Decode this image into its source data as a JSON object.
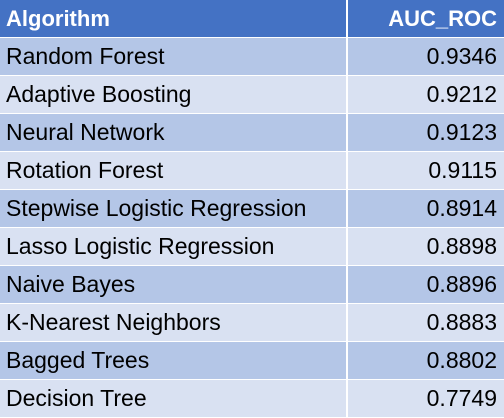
{
  "chart_data": {
    "type": "table",
    "columns": [
      "Algorithm",
      "AUC_ROC"
    ],
    "rows": [
      [
        "Random Forest",
        "0.9346"
      ],
      [
        "Adaptive Boosting",
        "0.9212"
      ],
      [
        "Neural Network",
        "0.9123"
      ],
      [
        "Rotation Forest",
        "0.9115"
      ],
      [
        "Stepwise Logistic Regression",
        "0.8914"
      ],
      [
        "Lasso Logistic Regression",
        "0.8898"
      ],
      [
        "Naive Bayes",
        "0.8896"
      ],
      [
        "K-Nearest Neighbors",
        "0.8883"
      ],
      [
        "Bagged Trees",
        "0.8802"
      ],
      [
        "Decision Tree",
        "0.7749"
      ]
    ]
  },
  "colors": {
    "header_bg": "#4472c4",
    "header_text": "#ffffff",
    "band_dark": "#b4c6e7",
    "band_light": "#d9e1f2",
    "cell_text": "#000000"
  }
}
